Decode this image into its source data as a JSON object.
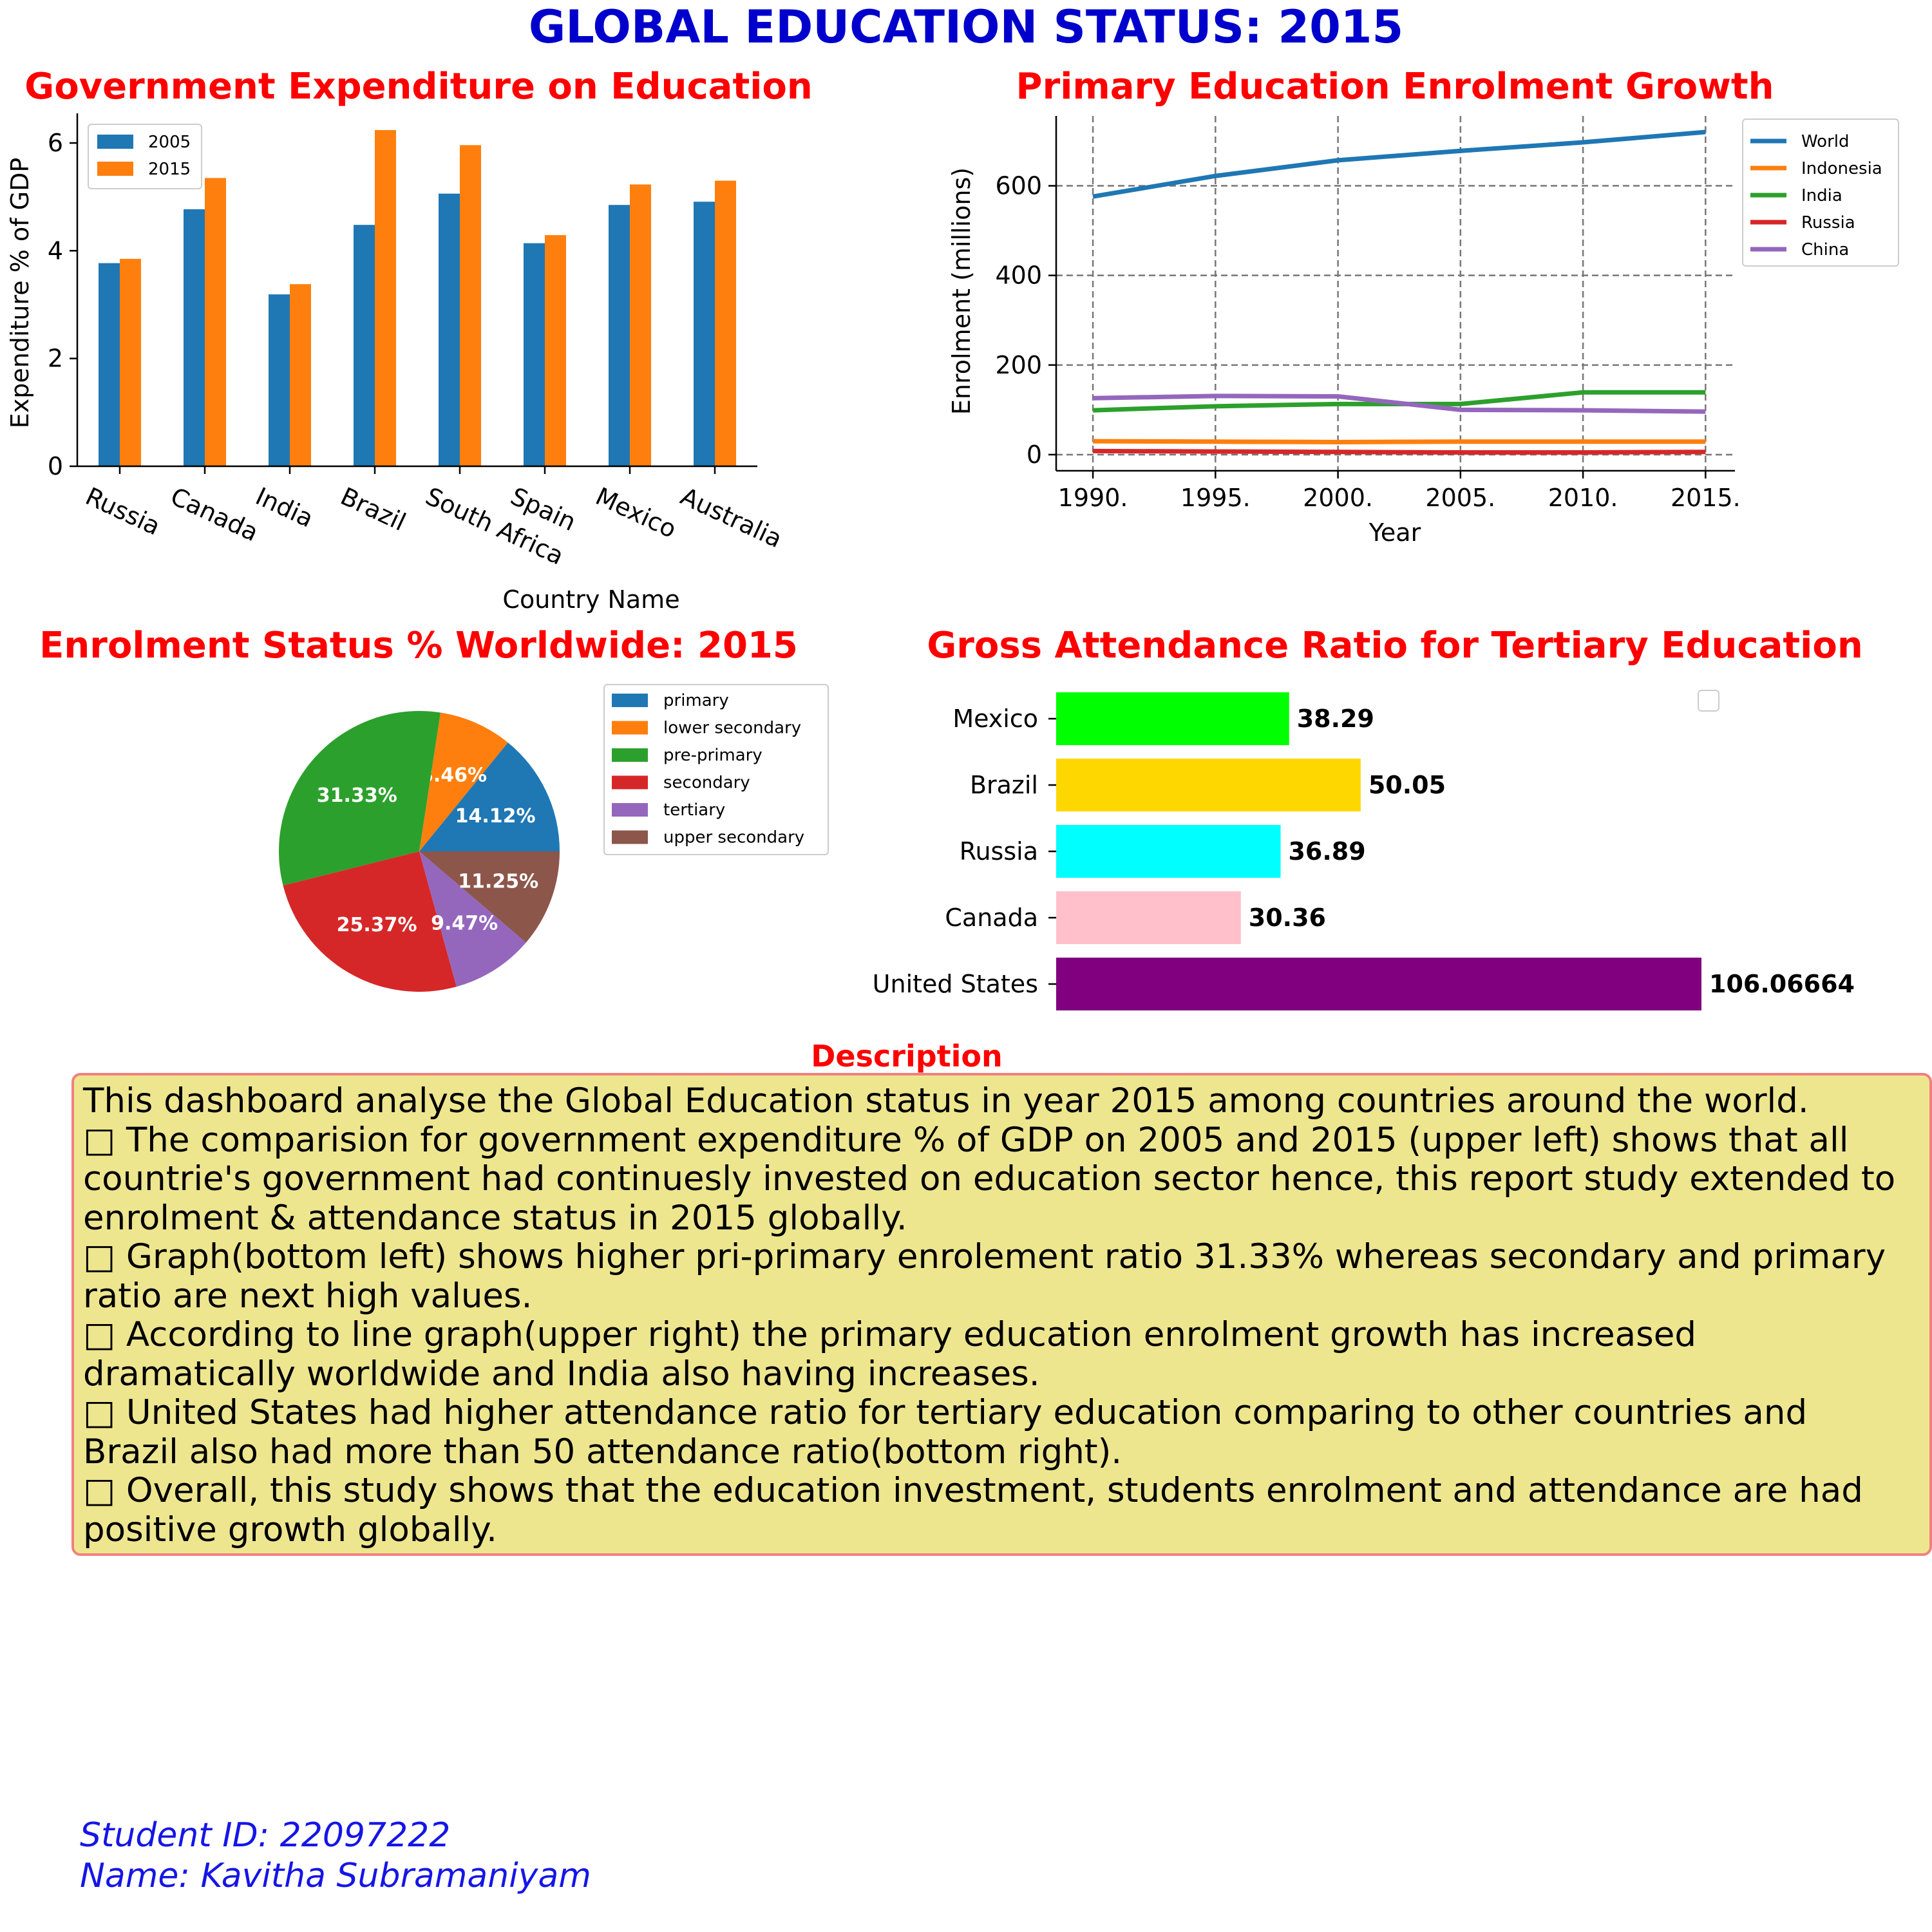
{
  "page": {
    "title": "GLOBAL EDUCATION STATUS: 2015",
    "description_heading": "Description",
    "description_lines": [
      "This dashboard analyse the Global Education status in year 2015 among countries around the world.",
      "□ The comparision for government expenditure % of GDP on 2005 and 2015 (upper left) shows that all",
      "countrie's government had continuesly invested on education sector hence, this report study extended to",
      "enrolment & attendance status in 2015 globally.",
      "□ Graph(bottom left) shows higher pri-primary enrolement ratio 31.33% whereas secondary and primary",
      "ratio are next high values.",
      "□ According to line graph(upper right) the primary education enrolment growth has increased",
      "dramatically worldwide and India also having increases.",
      "□ United States had higher attendance ratio for tertiary education comparing to other countries and",
      "Brazil also had more than 50 attendance ratio(bottom right).",
      "□ Overall, this study shows that the education investment, students enrolment and attendance are had",
      "positive growth globally."
    ],
    "student_id": "Student ID: 22097222",
    "student_name": "Name: Kavitha Subramaniyam",
    "title_color": "#0000cc",
    "subtitle_color": "#ff0000"
  },
  "chart_data": [
    {
      "type": "bar",
      "title": "Government Expenditure on Education",
      "xlabel": "Country Name",
      "ylabel": "Expenditure % of GDP",
      "categories": [
        "Russia",
        "Canada",
        "India",
        "Brazil",
        "South Africa",
        "Spain",
        "Mexico",
        "Australia"
      ],
      "series": [
        {
          "name": "2005",
          "color": "#1f77b4",
          "values": [
            3.77,
            4.77,
            3.19,
            4.48,
            5.06,
            4.14,
            4.85,
            4.91
          ]
        },
        {
          "name": "2015",
          "color": "#ff7f0e",
          "values": [
            3.85,
            5.35,
            3.38,
            6.24,
            5.96,
            4.29,
            5.23,
            5.3
          ]
        }
      ],
      "yticks": [
        0,
        2,
        4,
        6
      ],
      "ylim": [
        0,
        6.55
      ],
      "legend": "upper-left",
      "grid": false
    },
    {
      "type": "line",
      "title": "Primary Education Enrolment Growth",
      "xlabel": "Year",
      "ylabel": "Enrolment (millions)",
      "x": [
        1990,
        1995,
        2000,
        2005,
        2010,
        2015
      ],
      "xtick_labels": [
        "1990.",
        "1995.",
        "2000.",
        "2005.",
        "2010.",
        "2015."
      ],
      "yticks": [
        0,
        200,
        400,
        600
      ],
      "ylim": [
        -36,
        756
      ],
      "xlim": [
        1988.5,
        2016.2
      ],
      "grid": true,
      "legend": "right outside",
      "series": [
        {
          "name": "World",
          "color": "#1f77b4",
          "values": [
            576,
            622,
            657,
            678,
            697,
            720
          ]
        },
        {
          "name": "Indonesia",
          "color": "#ff7f0e",
          "values": [
            30,
            29,
            28,
            29,
            29,
            29
          ]
        },
        {
          "name": "India",
          "color": "#2ca02c",
          "values": [
            99,
            108,
            113,
            113,
            139,
            139
          ]
        },
        {
          "name": "Russia",
          "color": "#d62728",
          "values": [
            8,
            7,
            6,
            5,
            5,
            6
          ]
        },
        {
          "name": "China",
          "color": "#9467bd",
          "values": [
            126,
            131,
            130,
            100,
            99,
            96
          ]
        }
      ]
    },
    {
      "type": "pie",
      "title": "Enrolment Status % Worldwide: 2015",
      "legend": "right",
      "slices": [
        {
          "label": "primary",
          "value": 14.12,
          "color": "#1f77b4"
        },
        {
          "label": "lower secondary",
          "value": 8.46,
          "color": "#ff7f0e"
        },
        {
          "label": "pre-primary",
          "value": 31.33,
          "color": "#2ca02c"
        },
        {
          "label": "secondary",
          "value": 25.37,
          "color": "#d62728"
        },
        {
          "label": "tertiary",
          "value": 9.47,
          "color": "#9467bd"
        },
        {
          "label": "upper secondary",
          "value": 11.25,
          "color": "#8c564b"
        }
      ]
    },
    {
      "type": "bar",
      "orientation": "horizontal",
      "title": "Gross Attendance Ratio for Tertiary Education",
      "categories": [
        "Mexico",
        "Brazil",
        "Russia",
        "Canada",
        "United States"
      ],
      "values": [
        38.29,
        50.05,
        36.89,
        30.36,
        106.06664
      ],
      "value_labels": [
        "38.29",
        "50.05",
        "36.89",
        "30.36",
        "106.06664"
      ],
      "colors": [
        "#00ff00",
        "#ffd700",
        "#00ffff",
        "#ffc0cb",
        "#800080"
      ],
      "xlim": [
        0,
        106.06664
      ],
      "legend": "empty box top-right"
    }
  ]
}
